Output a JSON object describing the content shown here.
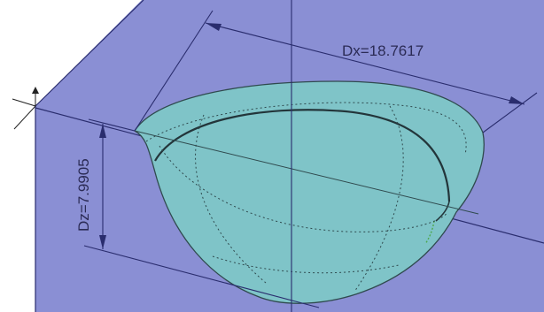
{
  "scene": {
    "colors": {
      "background": "#ffffff",
      "block_face": "#8a8fd4",
      "block_edge": "#2a2d6e",
      "cavity_fill": "#7fc4c8",
      "cavity_edge": "#2f4a4e",
      "dimension_line": "#2a2d6e",
      "dimension_text": "#2b2b55"
    },
    "dimensions": {
      "dx_label": "Dx=18.7617",
      "dz_label": "Dz=7.9905"
    }
  }
}
